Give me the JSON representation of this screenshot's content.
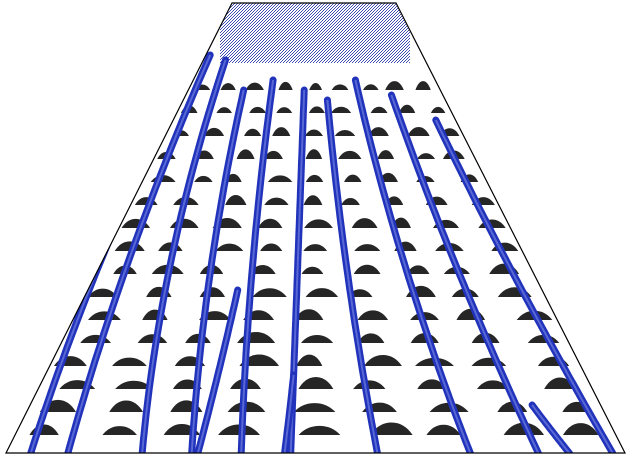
{
  "colors": {
    "background": "#ffffff",
    "outline": "#000000",
    "stream": "#2233bb",
    "stream_light": "#6f7fe0",
    "cells": "#000000"
  }
}
